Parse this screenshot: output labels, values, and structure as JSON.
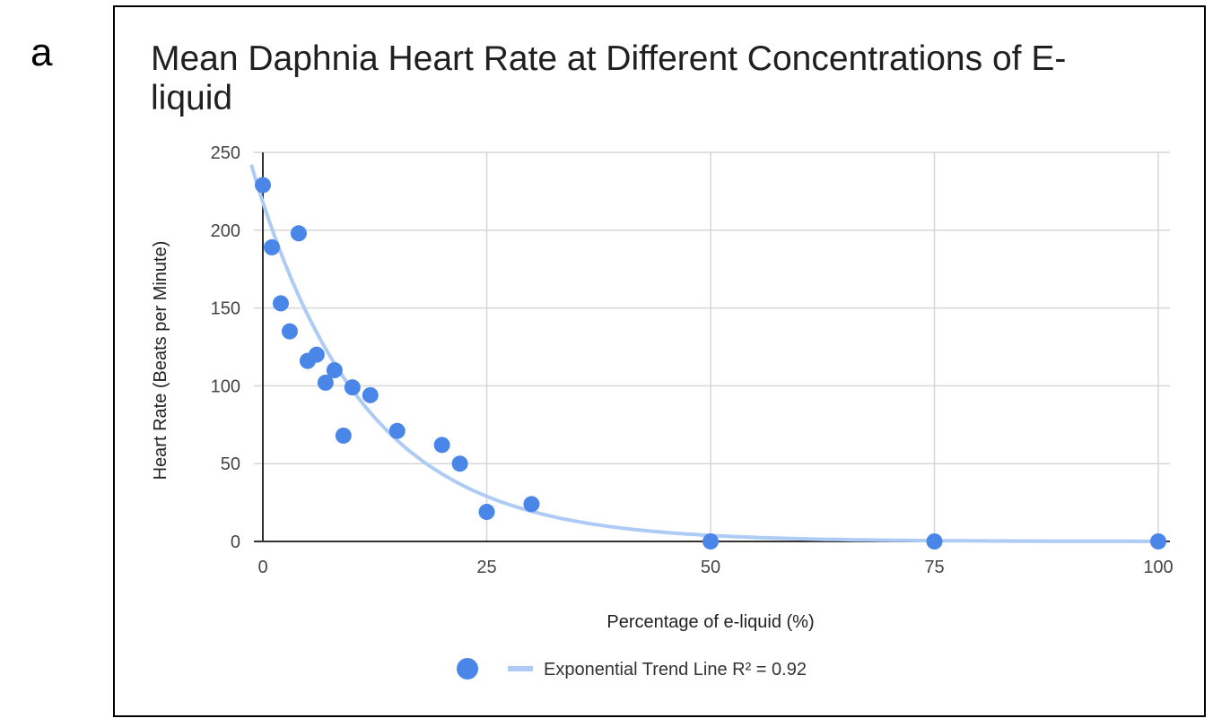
{
  "panel_label": "a",
  "colors": {
    "point": "#4a86e8",
    "trend": "#aecbf5",
    "grid": "#d6d6d6",
    "axis": "#333333"
  },
  "chart_data": {
    "type": "scatter",
    "title": "Mean Daphnia Heart Rate at Different Concentrations of E-liquid",
    "xlabel": "Percentage of e-liquid (%)",
    "ylabel": "Heart Rate (Beats per Minute)",
    "xlim": [
      0,
      100
    ],
    "ylim": [
      0,
      250
    ],
    "xticks": [
      0,
      25,
      50,
      75,
      100
    ],
    "yticks": [
      0,
      50,
      100,
      150,
      200,
      250
    ],
    "grid": true,
    "points": [
      {
        "x": 0,
        "y": 229
      },
      {
        "x": 1,
        "y": 189
      },
      {
        "x": 2,
        "y": 153
      },
      {
        "x": 3,
        "y": 135
      },
      {
        "x": 4,
        "y": 198
      },
      {
        "x": 5,
        "y": 116
      },
      {
        "x": 6,
        "y": 120
      },
      {
        "x": 7,
        "y": 102
      },
      {
        "x": 8,
        "y": 110
      },
      {
        "x": 9,
        "y": 68
      },
      {
        "x": 10,
        "y": 99
      },
      {
        "x": 12,
        "y": 94
      },
      {
        "x": 15,
        "y": 71
      },
      {
        "x": 20,
        "y": 62
      },
      {
        "x": 22,
        "y": 50
      },
      {
        "x": 25,
        "y": 19
      },
      {
        "x": 30,
        "y": 24
      },
      {
        "x": 50,
        "y": 0
      },
      {
        "x": 75,
        "y": 0
      },
      {
        "x": 100,
        "y": 0
      }
    ],
    "trendline": {
      "type": "exponential",
      "a": 218,
      "b": -0.0807,
      "x_start": -1.3,
      "x_end": 100
    },
    "legend": {
      "position": "bottom",
      "series_label": "",
      "trend_label": "Exponential Trend Line R² = 0.92"
    }
  }
}
